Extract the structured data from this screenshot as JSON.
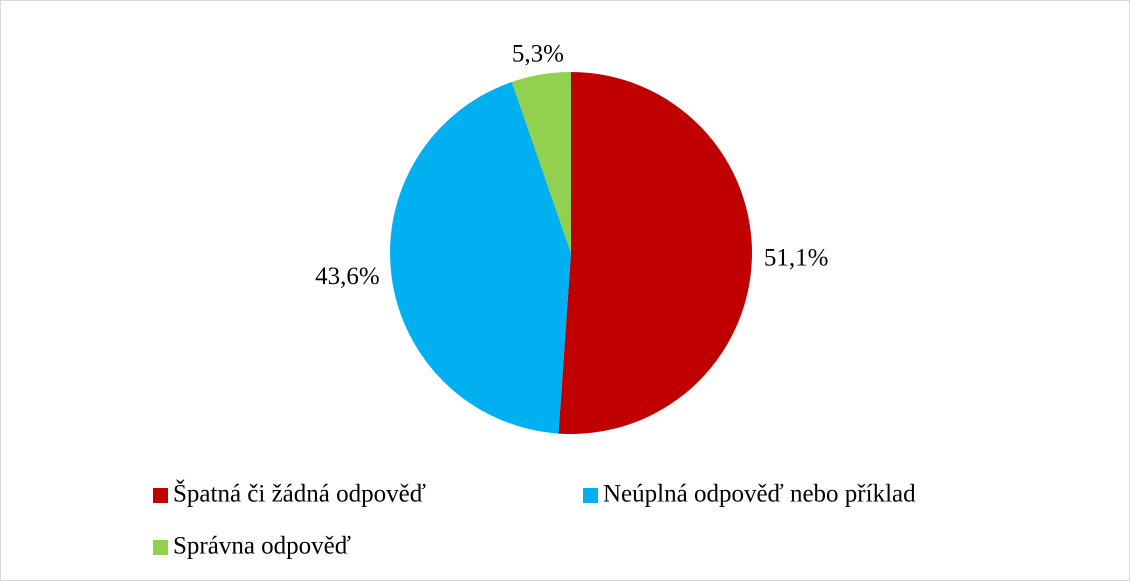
{
  "chart_data": {
    "type": "pie",
    "categories": [
      "Špatná či žádná odpověď",
      "Neúplná odpověď nebo příklad",
      "Správna odpověď"
    ],
    "values": [
      51.1,
      43.6,
      5.3
    ],
    "value_labels": [
      "51,1%",
      "43,6%",
      "5,3%"
    ],
    "colors": [
      "#c00000",
      "#00b0f0",
      "#92d050"
    ],
    "legend": "bottom"
  }
}
